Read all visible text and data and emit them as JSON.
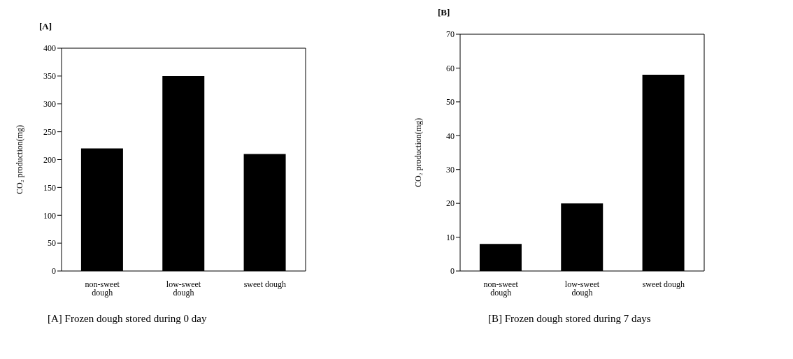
{
  "chart_data": [
    {
      "type": "bar",
      "title": "[A]",
      "ylabel": "CO₂ production(mg)",
      "categories": [
        "non-sweet dough",
        "low-sweet dough",
        "sweet dough"
      ],
      "values": [
        220,
        350,
        210
      ],
      "color": "#000000",
      "ylim": [
        0,
        400
      ],
      "yticks": [
        0,
        50,
        100,
        150,
        200,
        250,
        300,
        350,
        400
      ],
      "grid": false,
      "legend": false,
      "annotations": [
        "[A] Frozen dough stored during 0 day"
      ]
    },
    {
      "type": "bar",
      "title": "[B]",
      "ylabel": "CO₂ production(mg)",
      "categories": [
        "non-sweet dough",
        "low-sweet dough",
        "sweet dough"
      ],
      "values": [
        8,
        20,
        58
      ],
      "color": "#000000",
      "ylim": [
        0,
        70
      ],
      "yticks": [
        0,
        10,
        20,
        30,
        40,
        50,
        60,
        70
      ],
      "grid": false,
      "legend": false,
      "annotations": [
        "[B] Frozen dough stored during 7 days"
      ]
    }
  ]
}
